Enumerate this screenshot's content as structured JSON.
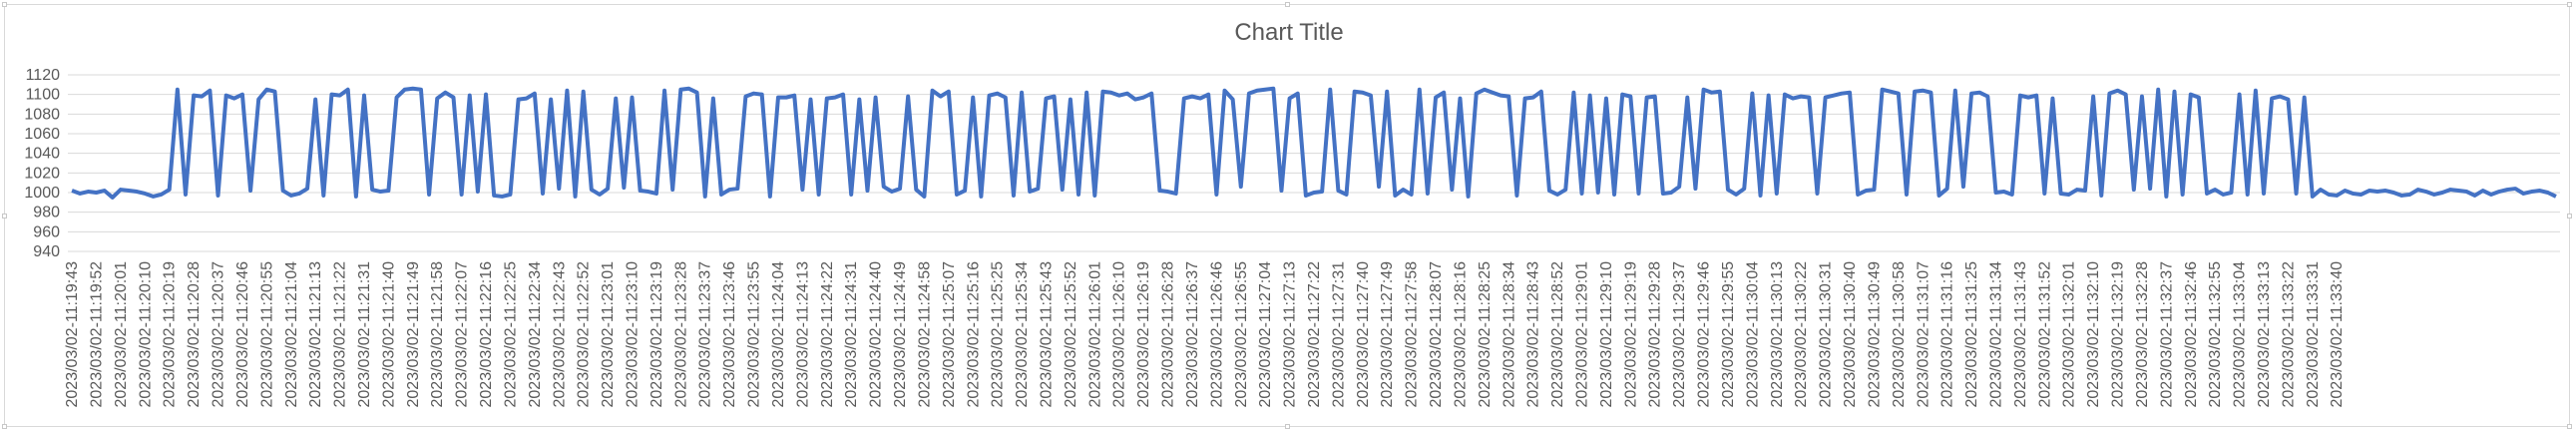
{
  "chart_data": {
    "type": "line",
    "title": "Chart Title",
    "xlabel": "",
    "ylabel": "",
    "ylim": [
      940,
      1120
    ],
    "y_ticks": [
      940,
      960,
      980,
      1000,
      1020,
      1040,
      1060,
      1080,
      1100,
      1120
    ],
    "grid": true,
    "legend": "none",
    "series_color": "#4472C4",
    "x_labels_shown": [
      "2023/03/02-11:19:43",
      "2023/03/02-11:19:52",
      "2023/03/02-11:20:01",
      "2023/03/02-11:20:10",
      "2023/03/02-11:20:19",
      "2023/03/02-11:20:28",
      "2023/03/02-11:20:37",
      "2023/03/02-11:20:46",
      "2023/03/02-11:20:55",
      "2023/03/02-11:21:04",
      "2023/03/02-11:21:13",
      "2023/03/02-11:21:22",
      "2023/03/02-11:21:31",
      "2023/03/02-11:21:40",
      "2023/03/02-11:21:49",
      "2023/03/02-11:21:58",
      "2023/03/02-11:22:07",
      "2023/03/02-11:22:16",
      "2023/03/02-11:22:25",
      "2023/03/02-11:22:34",
      "2023/03/02-11:22:43",
      "2023/03/02-11:22:52",
      "2023/03/02-11:23:01",
      "2023/03/02-11:23:10",
      "2023/03/02-11:23:19",
      "2023/03/02-11:23:28",
      "2023/03/02-11:23:37",
      "2023/03/02-11:23:46",
      "2023/03/02-11:23:55",
      "2023/03/02-11:24:04",
      "2023/03/02-11:24:13",
      "2023/03/02-11:24:22",
      "2023/03/02-11:24:31",
      "2023/03/02-11:24:40",
      "2023/03/02-11:24:49",
      "2023/03/02-11:24:58",
      "2023/03/02-11:25:07",
      "2023/03/02-11:25:16",
      "2023/03/02-11:25:25",
      "2023/03/02-11:25:34",
      "2023/03/02-11:25:43",
      "2023/03/02-11:25:52",
      "2023/03/02-11:26:01",
      "2023/03/02-11:26:10",
      "2023/03/02-11:26:19",
      "2023/03/02-11:26:28",
      "2023/03/02-11:26:37",
      "2023/03/02-11:26:46",
      "2023/03/02-11:26:55",
      "2023/03/02-11:27:04",
      "2023/03/02-11:27:13",
      "2023/03/02-11:27:22",
      "2023/03/02-11:27:31",
      "2023/03/02-11:27:40",
      "2023/03/02-11:27:49",
      "2023/03/02-11:27:58",
      "2023/03/02-11:28:07",
      "2023/03/02-11:28:16",
      "2023/03/02-11:28:25",
      "2023/03/02-11:28:34",
      "2023/03/02-11:28:43",
      "2023/03/02-11:28:52",
      "2023/03/02-11:29:01",
      "2023/03/02-11:29:10",
      "2023/03/02-11:29:19",
      "2023/03/02-11:29:28",
      "2023/03/02-11:29:37",
      "2023/03/02-11:29:46",
      "2023/03/02-11:29:55",
      "2023/03/02-11:30:04",
      "2023/03/02-11:30:13",
      "2023/03/02-11:30:22",
      "2023/03/02-11:30:31",
      "2023/03/02-11:30:40",
      "2023/03/02-11:30:49",
      "2023/03/02-11:30:58",
      "2023/03/02-11:31:07",
      "2023/03/02-11:31:16",
      "2023/03/02-11:31:25",
      "2023/03/02-11:31:34",
      "2023/03/02-11:31:43",
      "2023/03/02-11:31:52",
      "2023/03/02-11:32:01",
      "2023/03/02-11:32:10",
      "2023/03/02-11:32:19",
      "2023/03/02-11:32:28",
      "2023/03/02-11:32:37",
      "2023/03/02-11:32:46",
      "2023/03/02-11:32:55",
      "2023/03/02-11:33:04",
      "2023/03/02-11:33:13",
      "2023/03/02-11:33:22",
      "2023/03/02-11:33:31",
      "2023/03/02-11:33:40"
    ],
    "values": [
      1002,
      999,
      1001,
      1000,
      1002,
      995,
      1003,
      1002,
      1001,
      999,
      996,
      998,
      1003,
      1105,
      998,
      1099,
      1098,
      1104,
      997,
      1099,
      1096,
      1100,
      1002,
      1095,
      1105,
      1103,
      1002,
      997,
      999,
      1004,
      1095,
      997,
      1100,
      1099,
      1105,
      996,
      1099,
      1003,
      1001,
      1002,
      1097,
      1105,
      1106,
      1105,
      998,
      1096,
      1102,
      1097,
      998,
      1099,
      1001,
      1100,
      997,
      996,
      998,
      1095,
      1096,
      1101,
      999,
      1095,
      1004,
      1104,
      996,
      1103,
      1003,
      998,
      1004,
      1096,
      1005,
      1097,
      1002,
      1001,
      999,
      1104,
      1003,
      1105,
      1106,
      1102,
      996,
      1096,
      998,
      1003,
      1004,
      1098,
      1101,
      1100,
      996,
      1097,
      1097,
      1099,
      1003,
      1095,
      998,
      1096,
      1097,
      1100,
      998,
      1095,
      1002,
      1097,
      1006,
      1001,
      1004,
      1098,
      1003,
      996,
      1104,
      1098,
      1103,
      998,
      1002,
      1097,
      996,
      1099,
      1101,
      1097,
      997,
      1102,
      1001,
      1004,
      1096,
      1098,
      1003,
      1095,
      998,
      1102,
      997,
      1103,
      1102,
      1099,
      1101,
      1095,
      1097,
      1101,
      1002,
      1001,
      999,
      1096,
      1098,
      1096,
      1100,
      998,
      1104,
      1095,
      1006,
      1101,
      1104,
      1105,
      1106,
      1002,
      1096,
      1101,
      997,
      1000,
      1001,
      1105,
      1002,
      998,
      1103,
      1102,
      1099,
      1006,
      1103,
      997,
      1003,
      998,
      1105,
      999,
      1097,
      1102,
      1003,
      1096,
      996,
      1101,
      1105,
      1102,
      1099,
      1098,
      997,
      1096,
      1097,
      1103,
      1002,
      998,
      1003,
      1102,
      999,
      1099,
      1000,
      1096,
      998,
      1100,
      1098,
      999,
      1097,
      1098,
      999,
      1000,
      1006,
      1097,
      1004,
      1105,
      1102,
      1103,
      1003,
      998,
      1004,
      1101,
      997,
      1099,
      999,
      1100,
      1096,
      1098,
      1097,
      999,
      1097,
      1099,
      1101,
      1102,
      998,
      1002,
      1003,
      1105,
      1103,
      1101,
      998,
      1103,
      1104,
      1102,
      997,
      1004,
      1104,
      1006,
      1101,
      1102,
      1098,
      1000,
      1001,
      998,
      1099,
      1097,
      1099,
      999,
      1096,
      999,
      998,
      1003,
      1002,
      1098,
      997,
      1101,
      1104,
      1100,
      1003,
      1098,
      1004,
      1105,
      996,
      1103,
      998,
      1100,
      1097,
      999,
      1003,
      998,
      1000,
      1100,
      998,
      1104,
      999,
      1096,
      1098,
      1095,
      999,
      1097,
      996,
      1003,
      998,
      997,
      1002,
      999,
      998,
      1002,
      1001,
      1002,
      1000,
      997,
      998,
      1003,
      1001,
      998,
      1000,
      1003,
      1002,
      1001,
      997,
      1002,
      998,
      1001,
      1003,
      1004,
      999,
      1001,
      1002,
      1000,
      996
    ]
  }
}
